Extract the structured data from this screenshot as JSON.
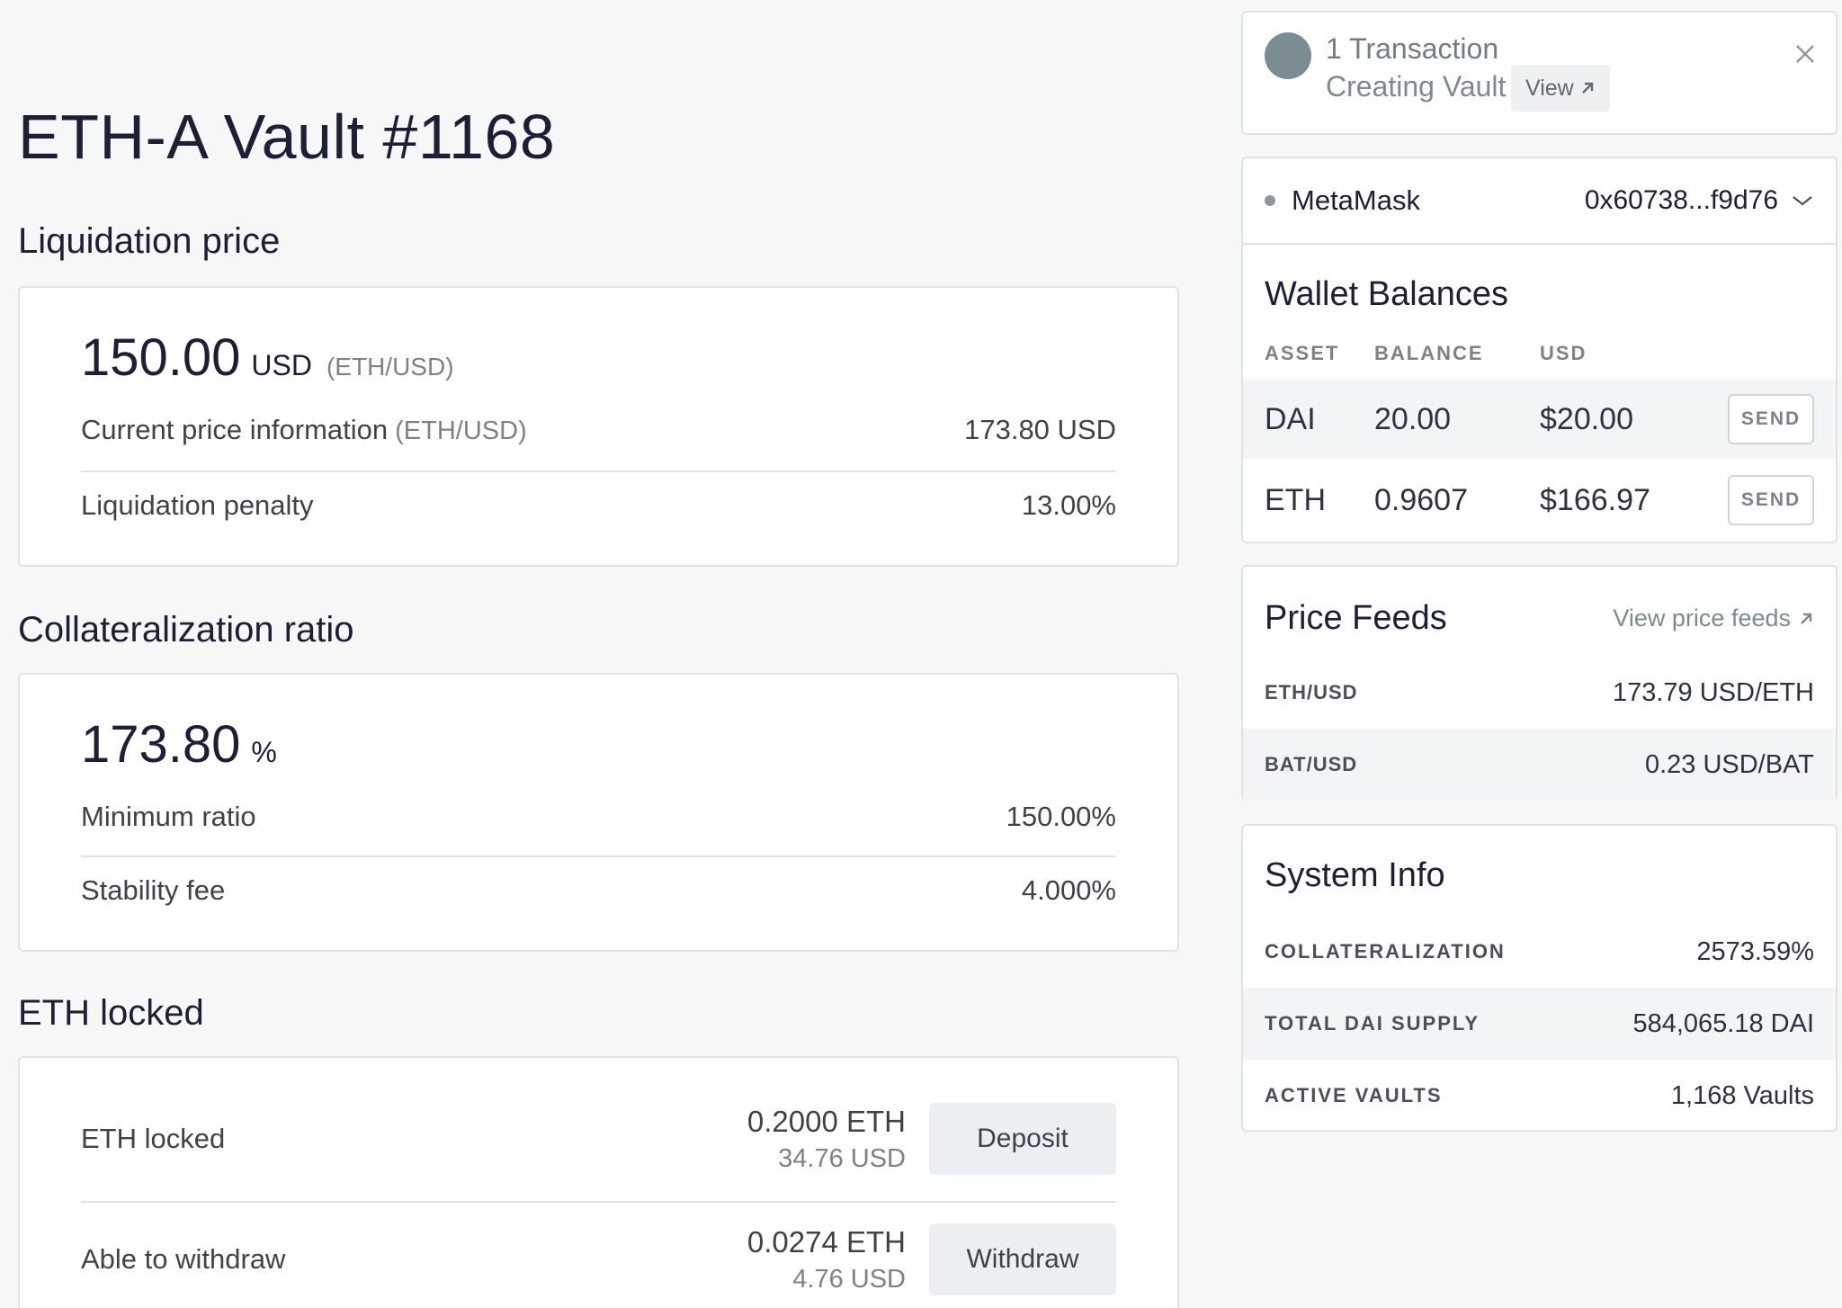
{
  "vault": {
    "title": "ETH-A Vault #1168"
  },
  "liquidation": {
    "section_title": "Liquidation price",
    "value": "150.00",
    "unit": "USD",
    "pair": "(ETH/USD)",
    "current_price_label": "Current price information",
    "current_price_pair": "(ETH/USD)",
    "current_price_value": "173.80 USD",
    "penalty_label": "Liquidation penalty",
    "penalty_value": "13.00%"
  },
  "collateralization": {
    "section_title": "Collateralization ratio",
    "value": "173.80",
    "unit": "%",
    "min_ratio_label": "Minimum ratio",
    "min_ratio_value": "150.00%",
    "stability_fee_label": "Stability fee",
    "stability_fee_value": "4.000%"
  },
  "eth_locked": {
    "section_title": "ETH locked",
    "rows": [
      {
        "label": "ETH locked",
        "amount": "0.2000 ETH",
        "usd": "34.76 USD",
        "button": "Deposit"
      },
      {
        "label": "Able to withdraw",
        "amount": "0.0274 ETH",
        "usd": "4.76 USD",
        "button": "Withdraw"
      }
    ]
  },
  "transaction": {
    "title": "1 Transaction",
    "status": "Creating Vault",
    "view_label": "View",
    "avatar_color": "#7b8c92"
  },
  "wallet": {
    "provider": "MetaMask",
    "address": "0x60738...f9d76"
  },
  "wallet_balances": {
    "title": "Wallet Balances",
    "columns": [
      "ASSET",
      "BALANCE",
      "USD"
    ],
    "rows": [
      {
        "asset": "DAI",
        "balance": "20.00",
        "usd": "$20.00",
        "action": "SEND"
      },
      {
        "asset": "ETH",
        "balance": "0.9607",
        "usd": "$166.97",
        "action": "SEND"
      }
    ]
  },
  "price_feeds": {
    "title": "Price Feeds",
    "link_label": "View price feeds",
    "rows": [
      {
        "pair": "ETH/USD",
        "value": "173.79 USD/ETH"
      },
      {
        "pair": "BAT/USD",
        "value": "0.23 USD/BAT"
      }
    ]
  },
  "system_info": {
    "title": "System Info",
    "rows": [
      {
        "label": "COLLATERALIZATION",
        "value": "2573.59%"
      },
      {
        "label": "TOTAL DAI SUPPLY",
        "value": "584,065.18 DAI"
      },
      {
        "label": "ACTIVE VAULTS",
        "value": "1,168 Vaults"
      }
    ]
  }
}
